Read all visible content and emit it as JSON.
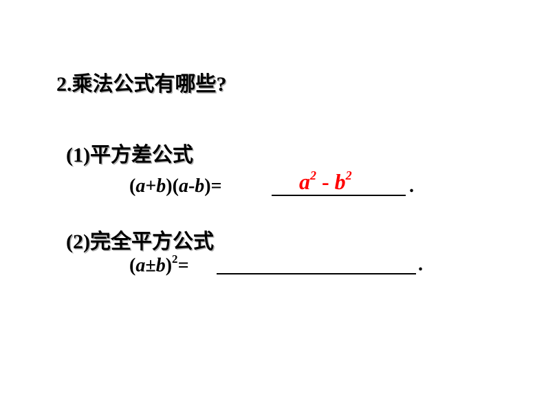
{
  "title": "2.乘法公式有哪些?",
  "section1": {
    "label": "(1)平方差公式",
    "formula_lhs_a": "a",
    "formula_lhs_plus": "+",
    "formula_lhs_b": "b",
    "formula_lhs_a2": "a",
    "formula_lhs_minus": "-",
    "formula_lhs_b2": "b",
    "formula_eq": ")=",
    "dot": ".",
    "answer_a": "a",
    "answer_exp1": "2",
    "answer_mid": " - ",
    "answer_b": "b",
    "answer_exp2": "2",
    "answer_color": "#ff0000"
  },
  "section2": {
    "label": "(2)完全平方公式",
    "formula_open": "(",
    "formula_a": "a",
    "formula_pm": "±",
    "formula_b": "b",
    "formula_close": ")",
    "formula_exp": "2",
    "formula_eq": "=",
    "dot": "."
  },
  "colors": {
    "text": "#000000",
    "shadow": "#b0b0b0",
    "answer": "#ff0000",
    "background": "#ffffff"
  },
  "fonts": {
    "cjk_size_pt": 30,
    "formula_size_pt": 28,
    "answer_size_pt": 32
  }
}
